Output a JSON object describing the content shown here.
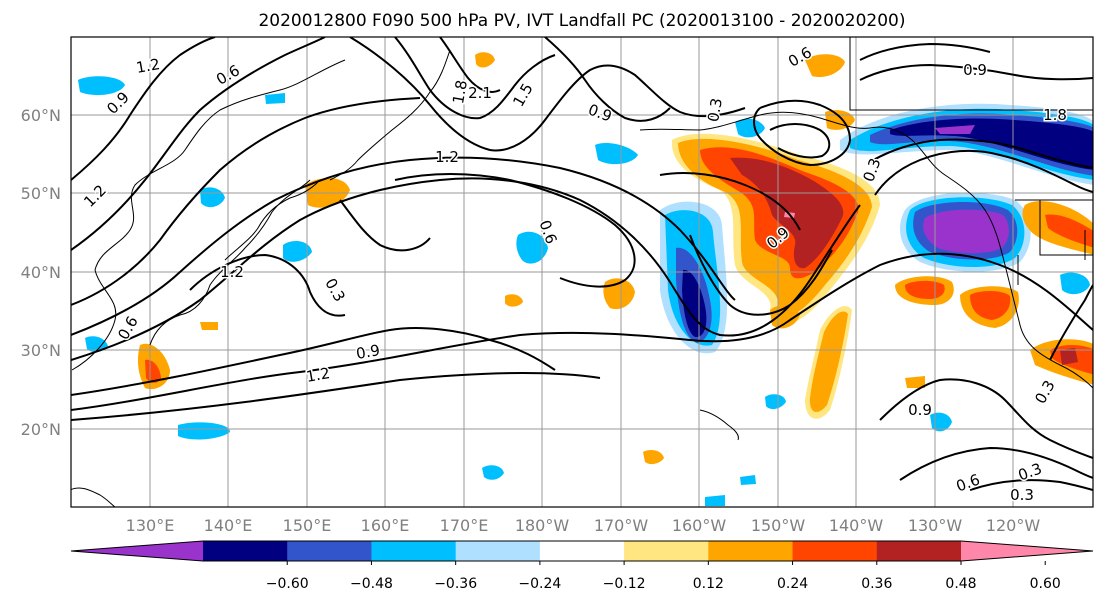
{
  "title": "2020012800 F090 500 hPa PV, IVT Landfall PC (2020013100 - 2020020200)",
  "latitude_labels": [
    "60°N",
    "50°N",
    "40°N",
    "30°N",
    "20°N"
  ],
  "longitude_labels": [
    "130°E",
    "140°E",
    "150°E",
    "160°E",
    "170°E",
    "180°W",
    "170°W",
    "160°W",
    "150°W",
    "140°W",
    "130°W",
    "120°W"
  ],
  "colorbar": {
    "ticks": [
      "−0.60",
      "−0.48",
      "−0.36",
      "−0.24",
      "−0.12",
      "0.12",
      "0.24",
      "0.36",
      "0.48",
      "0.60"
    ],
    "colors": [
      "#9933cc",
      "#000080",
      "#3355cc",
      "#00bfff",
      "#b0e0ff",
      "#ffffff",
      "#ffe680",
      "#ffa500",
      "#ff4500",
      "#b22222",
      "#ff88aa"
    ]
  },
  "contour_labels": [
    "1.2",
    "0.6",
    "0.9",
    "1.2",
    "2.1",
    "1.5",
    "1.8",
    "0.9",
    "0.6",
    "0.3",
    "0.9",
    "1.2",
    "1.2",
    "0.6",
    "0.6",
    "0.3",
    "0.3",
    "0.9",
    "0.9",
    "1.8",
    "0.9",
    "0.3",
    "0.3",
    "0.6",
    "0.3",
    "1.2"
  ],
  "map": {
    "grid": true,
    "fill_colors": {
      "purple": "#9933cc",
      "navy": "#000080",
      "blue": "#3355cc",
      "cyan": "#00bfff",
      "lightblue": "#b0e0ff",
      "yellow": "#ffe680",
      "orange": "#ffa500",
      "redorange": "#ff4500",
      "darkred": "#b22222",
      "pink": "#ff88aa"
    }
  }
}
